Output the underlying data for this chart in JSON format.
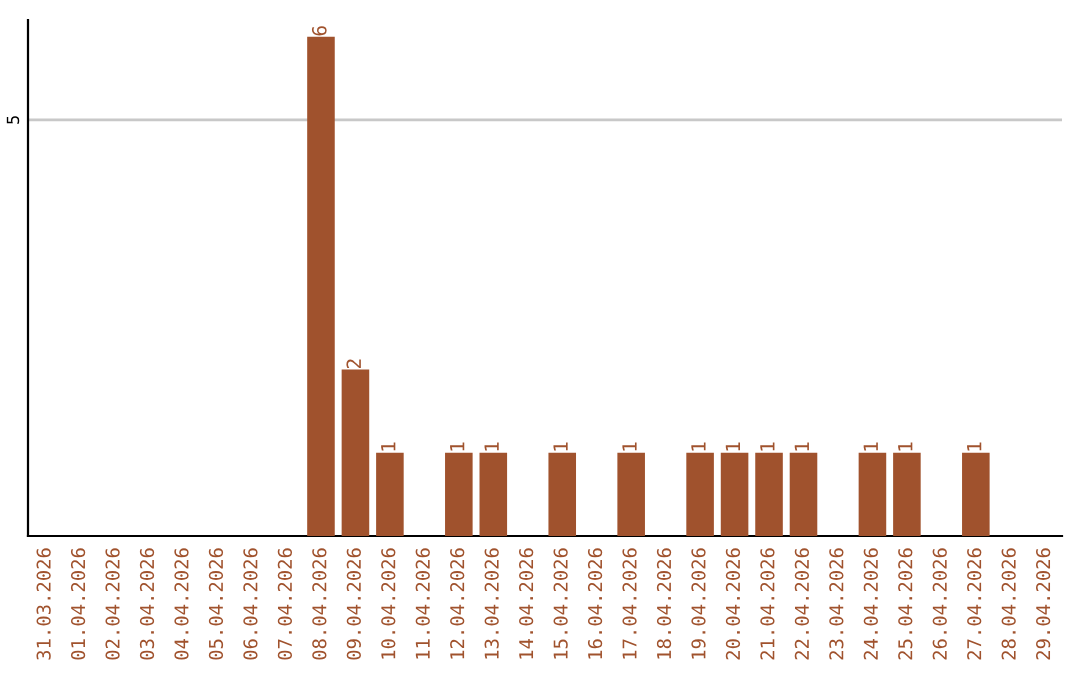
{
  "chart_data": {
    "type": "bar",
    "categories": [
      "31.03.2026",
      "01.04.2026",
      "02.04.2026",
      "03.04.2026",
      "04.04.2026",
      "05.04.2026",
      "06.04.2026",
      "07.04.2026",
      "08.04.2026",
      "09.04.2026",
      "10.04.2026",
      "11.04.2026",
      "12.04.2026",
      "13.04.2026",
      "14.04.2026",
      "15.04.2026",
      "16.04.2026",
      "17.04.2026",
      "18.04.2026",
      "19.04.2026",
      "20.04.2026",
      "21.04.2026",
      "22.04.2026",
      "23.04.2026",
      "24.04.2026",
      "25.04.2026",
      "26.04.2026",
      "27.04.2026",
      "28.04.2026",
      "29.04.2026"
    ],
    "values": [
      0,
      0,
      0,
      0,
      0,
      0,
      0,
      0,
      6,
      2,
      1,
      0,
      1,
      1,
      0,
      1,
      0,
      1,
      0,
      1,
      1,
      1,
      1,
      0,
      1,
      1,
      0,
      1,
      0,
      0
    ],
    "value_labels": [
      null,
      null,
      null,
      null,
      null,
      null,
      null,
      null,
      "6",
      "2",
      "1",
      null,
      "1",
      "1",
      null,
      "1",
      null,
      "1",
      null,
      "1",
      "1",
      "1",
      "1",
      null,
      "1",
      "1",
      null,
      "1",
      null,
      null
    ],
    "color": "#a0522d",
    "ylim": [
      0,
      6.2
    ],
    "yticks": [
      5
    ],
    "grid": "y"
  }
}
